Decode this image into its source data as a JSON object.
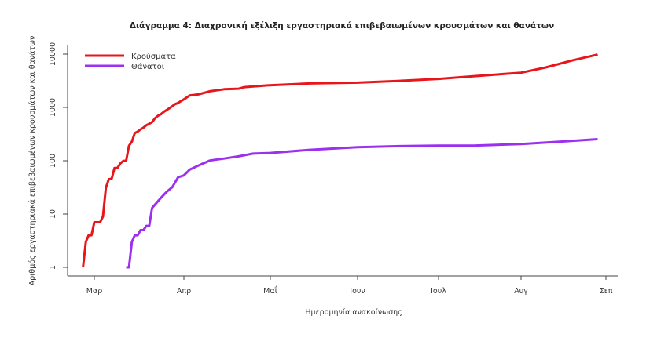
{
  "chart_data": {
    "type": "line",
    "title": "Διάγραμμα 4: Διαχρονική εξέλιξη εργαστηριακά επιβεβαιωμένων κρουσμάτων και θανάτων",
    "xlabel": "Ημερομηνία ανακοίνωσης",
    "ylabel": "Αριθμός εργαστηριακά επιβεβαιωμένων κρουσμάτων και θανάτων",
    "y_scale": "log",
    "ylim": [
      1,
      10000
    ],
    "y_ticks": [
      "1",
      "10",
      "100",
      "1000",
      "10000"
    ],
    "x_ticks": [
      "Μαρ",
      "Απρ",
      "Μαΐ",
      "Ιουν",
      "Ιουλ",
      "Αυγ",
      "Σεπ"
    ],
    "grid": false,
    "legend_position": "top-left",
    "series": [
      {
        "name": "Κρούσματα",
        "color": "#e8161b",
        "points": [
          [
            "2020-02-26",
            1
          ],
          [
            "2020-02-27",
            3
          ],
          [
            "2020-02-28",
            4
          ],
          [
            "2020-02-29",
            4
          ],
          [
            "2020-03-01",
            7
          ],
          [
            "2020-03-03",
            7
          ],
          [
            "2020-03-04",
            9
          ],
          [
            "2020-03-05",
            31
          ],
          [
            "2020-03-06",
            45
          ],
          [
            "2020-03-07",
            46
          ],
          [
            "2020-03-08",
            73
          ],
          [
            "2020-03-09",
            73
          ],
          [
            "2020-03-10",
            89
          ],
          [
            "2020-03-11",
            99
          ],
          [
            "2020-03-12",
            100
          ],
          [
            "2020-03-13",
            190
          ],
          [
            "2020-03-14",
            228
          ],
          [
            "2020-03-15",
            331
          ],
          [
            "2020-03-16",
            352
          ],
          [
            "2020-03-17",
            387
          ],
          [
            "2020-03-18",
            418
          ],
          [
            "2020-03-19",
            464
          ],
          [
            "2020-03-20",
            495
          ],
          [
            "2020-03-21",
            530
          ],
          [
            "2020-03-22",
            624
          ],
          [
            "2020-03-23",
            695
          ],
          [
            "2020-03-24",
            743
          ],
          [
            "2020-03-25",
            821
          ],
          [
            "2020-03-26",
            892
          ],
          [
            "2020-03-27",
            966
          ],
          [
            "2020-03-28",
            1061
          ],
          [
            "2020-03-29",
            1156
          ],
          [
            "2020-03-30",
            1212
          ],
          [
            "2020-03-31",
            1314
          ],
          [
            "2020-04-01",
            1415
          ],
          [
            "2020-04-03",
            1673
          ],
          [
            "2020-04-06",
            1755
          ],
          [
            "2020-04-10",
            2011
          ],
          [
            "2020-04-15",
            2192
          ],
          [
            "2020-04-20",
            2245
          ],
          [
            "2020-04-22",
            2401
          ],
          [
            "2020-04-30",
            2591
          ],
          [
            "2020-05-15",
            2819
          ],
          [
            "2020-06-01",
            2917
          ],
          [
            "2020-06-15",
            3121
          ],
          [
            "2020-07-01",
            3432
          ],
          [
            "2020-07-15",
            3879
          ],
          [
            "2020-08-01",
            4477
          ],
          [
            "2020-08-10",
            5623
          ],
          [
            "2020-08-20",
            7684
          ],
          [
            "2020-08-29",
            9800
          ]
        ]
      },
      {
        "name": "Θάνατοι",
        "color": "#9b30f0",
        "points": [
          [
            "2020-03-12",
            1
          ],
          [
            "2020-03-13",
            1
          ],
          [
            "2020-03-14",
            3
          ],
          [
            "2020-03-15",
            4
          ],
          [
            "2020-03-16",
            4
          ],
          [
            "2020-03-17",
            5
          ],
          [
            "2020-03-18",
            5
          ],
          [
            "2020-03-19",
            6
          ],
          [
            "2020-03-20",
            6
          ],
          [
            "2020-03-21",
            13
          ],
          [
            "2020-03-22",
            15
          ],
          [
            "2020-03-24",
            20
          ],
          [
            "2020-03-26",
            26
          ],
          [
            "2020-03-28",
            32
          ],
          [
            "2020-03-30",
            49
          ],
          [
            "2020-04-01",
            53
          ],
          [
            "2020-04-03",
            68
          ],
          [
            "2020-04-06",
            81
          ],
          [
            "2020-04-10",
            101
          ],
          [
            "2020-04-15",
            110
          ],
          [
            "2020-04-20",
            121
          ],
          [
            "2020-04-25",
            136
          ],
          [
            "2020-05-01",
            140
          ],
          [
            "2020-05-15",
            160
          ],
          [
            "2020-06-01",
            179
          ],
          [
            "2020-06-15",
            187
          ],
          [
            "2020-07-01",
            192
          ],
          [
            "2020-07-15",
            193
          ],
          [
            "2020-08-01",
            206
          ],
          [
            "2020-08-15",
            228
          ],
          [
            "2020-08-29",
            254
          ]
        ]
      }
    ]
  }
}
